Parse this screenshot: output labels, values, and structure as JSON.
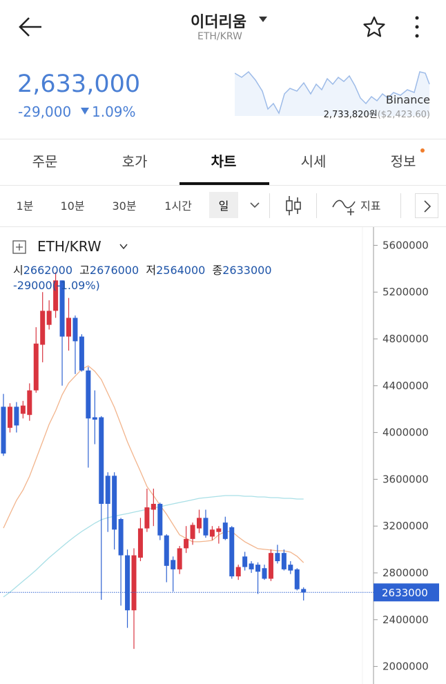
{
  "header": {
    "title": "이더리움",
    "subtitle": "ETH/KRW"
  },
  "price": {
    "current": "2,633,000",
    "change": "-29,000",
    "change_pct": "1.09%"
  },
  "exchange": {
    "name": "Binance",
    "krw": "2,733,820원",
    "usd": "($2,423.60)"
  },
  "tabs": [
    "주문",
    "호가",
    "차트",
    "시세",
    "정보"
  ],
  "toolbar": {
    "intervals": [
      "1분",
      "10분",
      "30분",
      "1시간",
      "일"
    ],
    "indicator": "지표"
  },
  "legend": {
    "symbol": "ETH/KRW",
    "open_label": "시",
    "high_label": "고",
    "low_label": "저",
    "close_label": "종",
    "change": "-29000(-1.09%)"
  },
  "chart_data": {
    "type": "candlestick",
    "up_color": "#d9343f",
    "down_color": "#2e62d2",
    "open": [
      4220000,
      4040000,
      4220000,
      4160000,
      4150000,
      4360000,
      4750000,
      4920000,
      5040000,
      5300000,
      4820000,
      4980000,
      4820000,
      4530000,
      4130000,
      4130000,
      3630000,
      3630000,
      3260000,
      2950000,
      2480000,
      2930000,
      3180000,
      3340000,
      3390000,
      3120000,
      2910000,
      2830000,
      3010000,
      3090000,
      3180000,
      3270000,
      3110000,
      3150000,
      3230000,
      3190000,
      2770000,
      2940000,
      2880000,
      2870000,
      2840000,
      2750000,
      2970000,
      2970000,
      2870000,
      2830000,
      2662000
    ],
    "high": [
      4330000,
      4250000,
      4260000,
      4270000,
      4420000,
      4900000,
      5200000,
      5130000,
      5370000,
      5300000,
      5150000,
      5000000,
      4840000,
      4560000,
      4360000,
      4140000,
      3660000,
      3660000,
      3270000,
      3000000,
      3010000,
      3270000,
      3520000,
      3520000,
      3400000,
      3130000,
      2940000,
      3030000,
      3200000,
      3230000,
      3340000,
      3340000,
      3200000,
      3200000,
      3280000,
      3200000,
      2870000,
      2980000,
      2900000,
      2890000,
      2870000,
      3000000,
      3040000,
      3000000,
      2900000,
      2840000,
      2676000
    ],
    "low": [
      3800000,
      4000000,
      4000000,
      4120000,
      4100000,
      4340000,
      4600000,
      4880000,
      4980000,
      4400000,
      4700000,
      4500000,
      4520000,
      3700000,
      3900000,
      2570000,
      3150000,
      3000000,
      2520000,
      2330000,
      2150000,
      2900000,
      3150000,
      3200000,
      3080000,
      2720000,
      2640000,
      2790000,
      2970000,
      3040000,
      3140000,
      3100000,
      3080000,
      3050000,
      3080000,
      2750000,
      2740000,
      2820000,
      2800000,
      2620000,
      2740000,
      2730000,
      2880000,
      2820000,
      2790000,
      2650000,
      2564000
    ],
    "close": [
      3820000,
      4220000,
      4060000,
      4230000,
      4360000,
      4760000,
      5040000,
      5040000,
      5300000,
      4820000,
      4980000,
      4780000,
      4530000,
      4120000,
      4110000,
      3390000,
      3390000,
      3170000,
      2950000,
      2480000,
      2950000,
      3180000,
      3360000,
      3390000,
      3120000,
      2860000,
      2830000,
      3010000,
      3090000,
      3210000,
      3270000,
      3120000,
      3170000,
      3180000,
      3090000,
      2770000,
      2850000,
      2850000,
      2830000,
      2810000,
      2750000,
      2970000,
      2900000,
      2830000,
      2820000,
      2660000,
      2633000
    ],
    "series": [
      {
        "color": "#f2b48c",
        "values": [
          3183000,
          3302000,
          3420000,
          3508000,
          3626000,
          3774000,
          3921000,
          4069000,
          4186000,
          4322000,
          4423000,
          4482000,
          4540000,
          4570000,
          4523000,
          4452000,
          4334000,
          4216000,
          4069000,
          3921000,
          3792000,
          3668000,
          3538000,
          3461000,
          3378000,
          3302000,
          3213000,
          3125000,
          3095000,
          3066000,
          3066000,
          3071000,
          3077000,
          3125000,
          3154000,
          3154000,
          3107000,
          3066000,
          3036000,
          3007000,
          3001000,
          2995000,
          2989000,
          2989000,
          2977000,
          2942000,
          2888000
        ]
      },
      {
        "color": "#a8dfe6",
        "values": [
          2594000,
          2635000,
          2682000,
          2729000,
          2776000,
          2824000,
          2877000,
          2930000,
          2977000,
          3024000,
          3071000,
          3113000,
          3154000,
          3189000,
          3225000,
          3254000,
          3272000,
          3284000,
          3296000,
          3307000,
          3319000,
          3331000,
          3343000,
          3355000,
          3366000,
          3378000,
          3390000,
          3402000,
          3413000,
          3425000,
          3437000,
          3443000,
          3449000,
          3455000,
          3461000,
          3461000,
          3461000,
          3455000,
          3455000,
          3449000,
          3449000,
          3443000,
          3443000,
          3437000,
          3437000,
          3431000,
          3431000
        ]
      }
    ],
    "last_price": 2633000,
    "last_price_color": "#2e62d2",
    "ylim": [
      1850000,
      5750000
    ],
    "yticks": [
      2000000,
      2400000,
      2800000,
      3200000,
      3600000,
      4000000,
      4400000,
      4800000,
      5200000,
      5600000
    ]
  }
}
